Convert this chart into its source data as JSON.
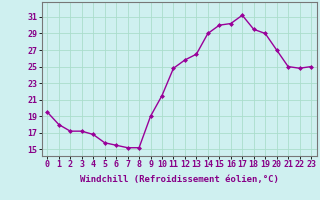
{
  "x": [
    0,
    1,
    2,
    3,
    4,
    5,
    6,
    7,
    8,
    9,
    10,
    11,
    12,
    13,
    14,
    15,
    16,
    17,
    18,
    19,
    20,
    21,
    22,
    23
  ],
  "y": [
    19.5,
    18.0,
    17.2,
    17.2,
    16.8,
    15.8,
    15.5,
    15.2,
    15.2,
    19.0,
    21.5,
    24.8,
    25.8,
    26.5,
    29.0,
    30.0,
    30.2,
    31.2,
    29.5,
    29.0,
    27.0,
    25.0,
    24.8,
    25.0
  ],
  "line_color": "#990099",
  "marker": "D",
  "markersize": 2.0,
  "linewidth": 1.0,
  "xlabel": "Windchill (Refroidissement éolien,°C)",
  "xlabel_fontsize": 6.5,
  "bg_color": "#cff0f0",
  "grid_color": "#aaddcc",
  "yticks": [
    15,
    17,
    19,
    21,
    23,
    25,
    27,
    29,
    31
  ],
  "ylim": [
    14.2,
    32.8
  ],
  "xlim": [
    -0.5,
    23.5
  ],
  "tick_fontsize": 6.0,
  "label_color": "#880088"
}
